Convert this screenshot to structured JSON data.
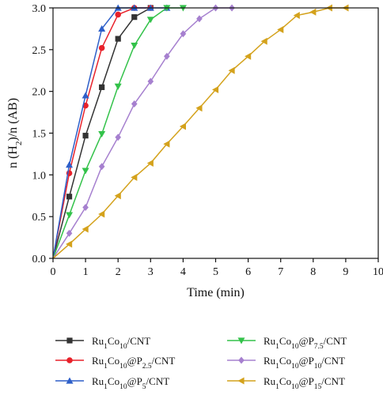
{
  "chart_data": {
    "type": "line",
    "xlabel": "Time (min)",
    "ylabel": {
      "pre": "n (H",
      "sub": "2",
      "post": ")/n (AB)"
    },
    "xlim": [
      0,
      10
    ],
    "ylim": [
      0,
      3.0
    ],
    "xticks": [
      "0",
      "1",
      "2",
      "3",
      "4",
      "5",
      "6",
      "7",
      "8",
      "9",
      "10"
    ],
    "yticks": [
      "0.0",
      "0.5",
      "1.0",
      "1.5",
      "2.0",
      "2.5",
      "3.0"
    ],
    "grid": false,
    "legend_position": "bottom",
    "series": [
      {
        "name": "Ru1Co10/CNT",
        "label_parts": [
          {
            "t": "Ru"
          },
          {
            "t": "1",
            "s": "sub"
          },
          {
            "t": "Co"
          },
          {
            "t": "10",
            "s": "sub"
          },
          {
            "t": "/CNT"
          }
        ],
        "color": "#333333",
        "marker": "square",
        "x": [
          0,
          0.5,
          1.0,
          1.5,
          2.0,
          2.5,
          3.0
        ],
        "y": [
          0,
          0.74,
          1.47,
          2.05,
          2.63,
          2.89,
          3.0
        ]
      },
      {
        "name": "Ru1Co10@P2.5/CNT",
        "label_parts": [
          {
            "t": "Ru"
          },
          {
            "t": "1",
            "s": "sub"
          },
          {
            "t": "Co"
          },
          {
            "t": "10",
            "s": "sub"
          },
          {
            "t": "@P"
          },
          {
            "t": "2.5",
            "s": "sub"
          },
          {
            "t": "/CNT"
          }
        ],
        "color": "#e8212a",
        "marker": "circle",
        "x": [
          0,
          0.5,
          1.0,
          1.5,
          2.0,
          2.5,
          3.0
        ],
        "y": [
          0,
          1.02,
          1.83,
          2.52,
          2.92,
          3.0,
          3.0
        ]
      },
      {
        "name": "Ru1Co10@P5/CNT",
        "label_parts": [
          {
            "t": "Ru"
          },
          {
            "t": "1",
            "s": "sub"
          },
          {
            "t": "Co"
          },
          {
            "t": "10",
            "s": "sub"
          },
          {
            "t": "@P"
          },
          {
            "t": "5",
            "s": "sub"
          },
          {
            "t": "/CNT"
          }
        ],
        "color": "#2e5fc9",
        "marker": "triangle-up",
        "x": [
          0,
          0.5,
          1.0,
          1.5,
          2.0,
          2.5,
          3.0,
          3.5
        ],
        "y": [
          0,
          1.12,
          1.95,
          2.75,
          3.0,
          3.0,
          3.0,
          3.0
        ]
      },
      {
        "name": "Ru1Co10@P7.5/CNT",
        "label_parts": [
          {
            "t": "Ru"
          },
          {
            "t": "1",
            "s": "sub"
          },
          {
            "t": "Co"
          },
          {
            "t": "10",
            "s": "sub"
          },
          {
            "t": "@P"
          },
          {
            "t": "7.5",
            "s": "sub"
          },
          {
            "t": "/CNT"
          }
        ],
        "color": "#33c24a",
        "marker": "triangle-down",
        "x": [
          0,
          0.5,
          1.0,
          1.5,
          2.0,
          2.5,
          3.0,
          3.5,
          4.0
        ],
        "y": [
          0,
          0.52,
          1.05,
          1.49,
          2.06,
          2.55,
          2.86,
          3.0,
          3.0
        ]
      },
      {
        "name": "Ru1Co10@P10/CNT",
        "label_parts": [
          {
            "t": "Ru"
          },
          {
            "t": "1",
            "s": "sub"
          },
          {
            "t": "Co"
          },
          {
            "t": "10",
            "s": "sub"
          },
          {
            "t": "@P"
          },
          {
            "t": "10",
            "s": "sub"
          },
          {
            "t": "/CNT"
          }
        ],
        "color": "#a680cf",
        "marker": "diamond",
        "x": [
          0,
          0.5,
          1.0,
          1.5,
          2.0,
          2.5,
          3.0,
          3.5,
          4.0,
          4.5,
          5.0,
          5.5
        ],
        "y": [
          0,
          0.3,
          0.61,
          1.1,
          1.45,
          1.85,
          2.12,
          2.42,
          2.69,
          2.87,
          3.0,
          3.0
        ]
      },
      {
        "name": "Ru1Co10@P15/CNT",
        "label_parts": [
          {
            "t": "Ru"
          },
          {
            "t": "1",
            "s": "sub"
          },
          {
            "t": "Co"
          },
          {
            "t": "10",
            "s": "sub"
          },
          {
            "t": "@P"
          },
          {
            "t": "15",
            "s": "sub"
          },
          {
            "t": "/CNT"
          }
        ],
        "color": "#d4a21c",
        "marker": "triangle-left",
        "x": [
          0,
          0.5,
          1.0,
          1.5,
          2.0,
          2.5,
          3.0,
          3.5,
          4.0,
          4.5,
          5.0,
          5.5,
          6.0,
          6.5,
          7.0,
          7.5,
          8.0,
          8.5,
          9.0
        ],
        "y": [
          0,
          0.17,
          0.35,
          0.53,
          0.75,
          0.97,
          1.14,
          1.37,
          1.58,
          1.8,
          2.02,
          2.25,
          2.42,
          2.6,
          2.74,
          2.91,
          2.95,
          3.0,
          3.0
        ]
      }
    ]
  }
}
